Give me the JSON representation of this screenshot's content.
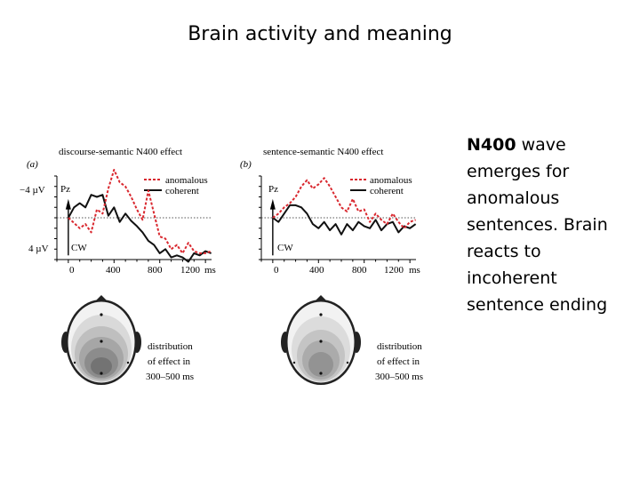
{
  "slide": {
    "title": "Brain activity and meaning",
    "description": {
      "highlight": "N400",
      "rest": " wave emerges for anomalous sentences. Brain reacts to incoherent sentence ending"
    }
  },
  "figure": {
    "panels": [
      {
        "letter": "(a)",
        "title": "discourse-semantic N400 effect",
        "electrode": "Pz",
        "cw_label": "CW",
        "legend": [
          "anomalous",
          "coherent"
        ],
        "y_ticks": [
          "−4 µV",
          "4 µV"
        ],
        "x_ticks": [
          "0",
          "400",
          "800",
          "1200"
        ],
        "x_unit": "ms",
        "topo_caption": [
          "distribution",
          "of effect in",
          "300–500 ms"
        ]
      },
      {
        "letter": "(b)",
        "title": "sentence-semantic N400 effect",
        "electrode": "Pz",
        "cw_label": "CW",
        "legend": [
          "anomalous",
          "coherent"
        ],
        "x_ticks": [
          "0",
          "400",
          "800",
          "1200"
        ],
        "x_unit": "ms",
        "topo_caption": [
          "distribution",
          "of effect in",
          "300–500 ms"
        ]
      }
    ],
    "colors": {
      "anomalous": "#d9282f",
      "coherent": "#111111"
    }
  },
  "chart_data": [
    {
      "type": "line",
      "x": [
        0,
        50,
        100,
        150,
        200,
        250,
        300,
        350,
        400,
        450,
        500,
        550,
        600,
        650,
        700,
        750,
        800,
        850,
        900,
        950,
        1000,
        1050,
        1100,
        1150,
        1200,
        1250
      ],
      "series": [
        {
          "name": "anomalous",
          "values": [
            0.0,
            0.5,
            1.0,
            0.6,
            1.4,
            -0.8,
            -0.4,
            -2.8,
            -4.6,
            -3.4,
            -3.0,
            -2.0,
            -0.8,
            0.2,
            -2.6,
            -0.4,
            1.8,
            2.0,
            3.0,
            2.6,
            3.4,
            2.4,
            3.2,
            3.4,
            3.4,
            3.2
          ]
        },
        {
          "name": "coherent",
          "values": [
            0.0,
            -1.0,
            -1.4,
            -1.0,
            -2.2,
            -2.0,
            -2.2,
            -0.2,
            -1.0,
            0.4,
            -0.4,
            0.3,
            0.8,
            1.4,
            2.2,
            2.6,
            3.4,
            3.0,
            3.8,
            3.6,
            3.8,
            4.2,
            3.4,
            3.6,
            3.2,
            3.4
          ]
        }
      ],
      "ylim": [
        4,
        -4
      ],
      "xlim": [
        -100,
        1300
      ]
    },
    {
      "type": "line",
      "x": [
        0,
        50,
        100,
        150,
        200,
        250,
        300,
        350,
        400,
        450,
        500,
        550,
        600,
        650,
        700,
        750,
        800,
        850,
        900,
        950,
        1000,
        1050,
        1100,
        1150,
        1200,
        1250
      ],
      "series": [
        {
          "name": "anomalous",
          "values": [
            0.0,
            -0.4,
            -1.0,
            -1.4,
            -2.0,
            -3.0,
            -3.6,
            -2.8,
            -3.2,
            -3.8,
            -3.0,
            -2.0,
            -1.0,
            -0.6,
            -1.8,
            -0.6,
            -0.8,
            0.4,
            -0.4,
            0.2,
            0.6,
            -0.4,
            0.4,
            1.0,
            0.4,
            0.2
          ]
        },
        {
          "name": "coherent",
          "values": [
            0.0,
            0.4,
            -0.4,
            -1.2,
            -1.2,
            -1.0,
            -0.4,
            0.6,
            1.0,
            0.4,
            1.2,
            0.6,
            1.6,
            0.6,
            1.2,
            0.4,
            0.8,
            1.0,
            0.2,
            1.2,
            0.6,
            0.4,
            1.4,
            0.8,
            1.0,
            0.6
          ]
        }
      ],
      "ylim": [
        4,
        -4
      ],
      "xlim": [
        -100,
        1300
      ]
    }
  ]
}
